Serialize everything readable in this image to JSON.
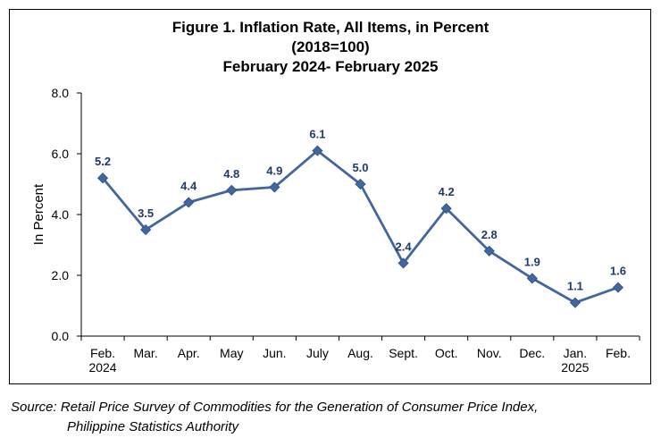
{
  "chart_data": {
    "type": "line",
    "title": [
      "Figure 1. Inflation Rate, All Items, in Percent",
      "(2018=100)",
      "February 2024- February 2025"
    ],
    "ylabel": "In Percent",
    "xlabel": "",
    "ylim": [
      0,
      8
    ],
    "yticks": [
      "0.0",
      "2.0",
      "4.0",
      "6.0",
      "8.0"
    ],
    "categories": [
      [
        "Feb.",
        "2024"
      ],
      [
        "Mar."
      ],
      [
        "Apr."
      ],
      [
        "May"
      ],
      [
        "Jun."
      ],
      [
        "July"
      ],
      [
        "Aug."
      ],
      [
        "Sept."
      ],
      [
        "Oct."
      ],
      [
        "Nov."
      ],
      [
        "Dec."
      ],
      [
        "Jan.",
        "2025"
      ],
      [
        "Feb."
      ]
    ],
    "series": [
      {
        "values": [
          5.2,
          3.5,
          4.4,
          4.8,
          4.9,
          6.1,
          5.0,
          2.4,
          4.2,
          2.8,
          1.9,
          1.1,
          1.6
        ],
        "labels": [
          "5.2",
          "3.5",
          "4.4",
          "4.8",
          "4.9",
          "6.1",
          "5.0",
          "2.4",
          "4.2",
          "2.8",
          "1.9",
          "1.1",
          "1.6"
        ],
        "color": "#41679E",
        "marker": "diamond"
      }
    ],
    "grid": false,
    "legend": "none"
  },
  "source": {
    "line1": "Source: Retail Price Survey of Commodities for the Generation of Consumer Price Index,",
    "line2": "Philippine Statistics Authority"
  }
}
